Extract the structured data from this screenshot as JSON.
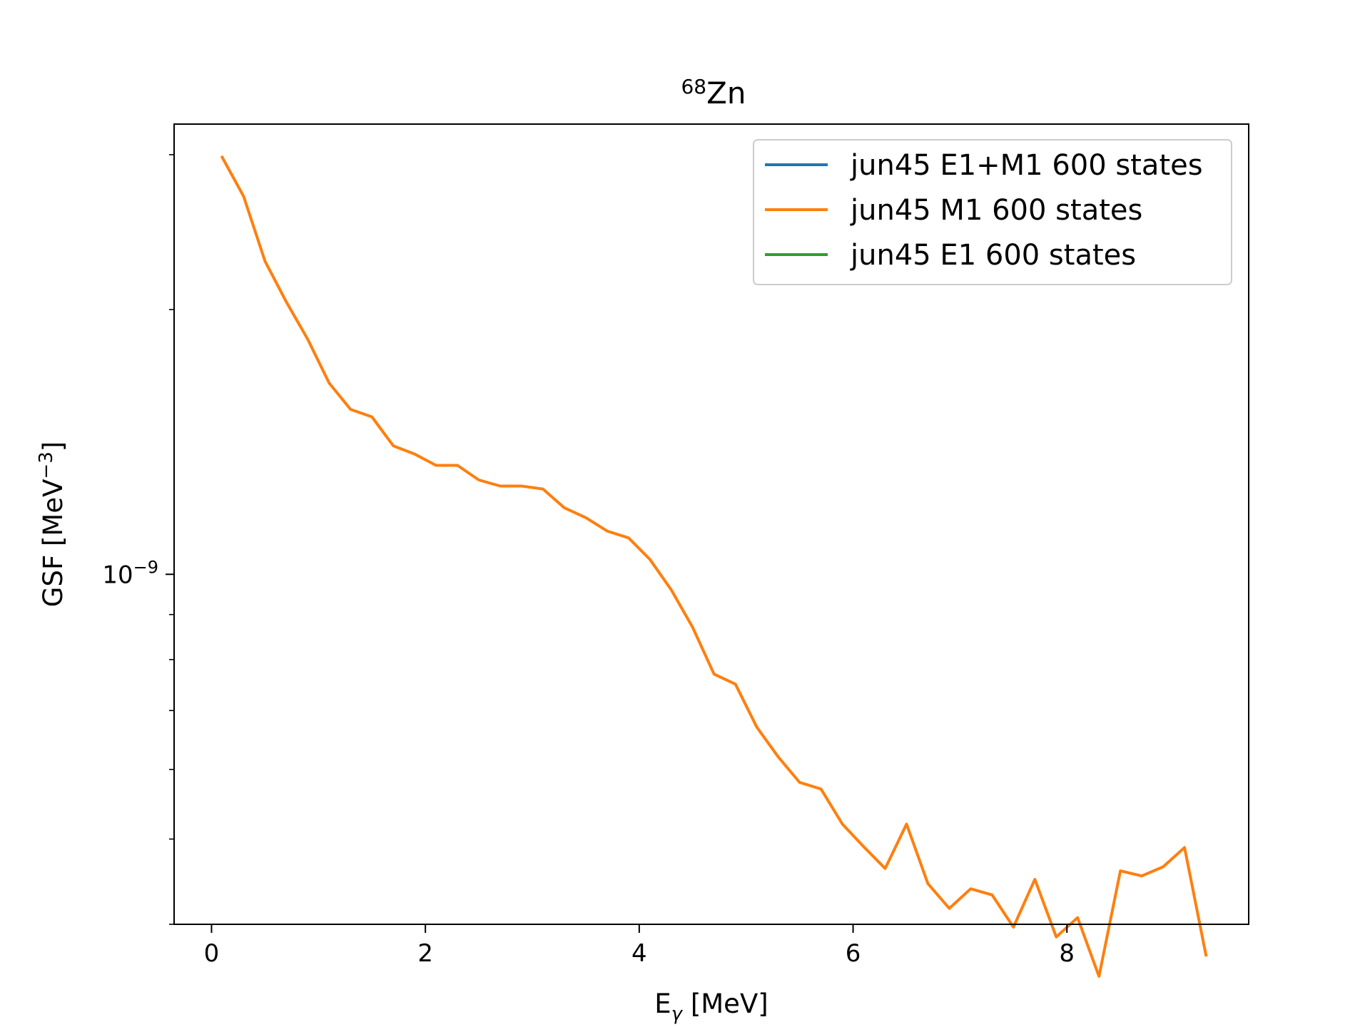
{
  "chart_data": {
    "type": "line",
    "title": {
      "sup": "68",
      "base": "Zn"
    },
    "xlabel": {
      "base": "E",
      "sub": "γ",
      "rest": " [MeV]"
    },
    "ylabel": {
      "base": "GSF [MeV",
      "sup": "−3",
      "rest": "]"
    },
    "xlim": [
      -0.35,
      9.7
    ],
    "ylim": [
      4e-10,
      3.25e-09
    ],
    "yscale": "log",
    "xticks": [
      0,
      2,
      4,
      6,
      8
    ],
    "xtick_labels": [
      "0",
      "2",
      "4",
      "6",
      "8"
    ],
    "yticks_major": [
      1e-09
    ],
    "ytick_major_labels": [
      {
        "base": "10",
        "sup": "−9"
      }
    ],
    "yticks_minor": [
      4e-10,
      5e-10,
      6e-10,
      7e-10,
      8e-10,
      9e-10,
      2e-09,
      3e-09
    ],
    "grid": false,
    "legend_position": "upper right",
    "series": [
      {
        "name": "jun45 E1+M1 600 states",
        "color": "#1f77b4",
        "x": [],
        "y": []
      },
      {
        "name": "jun45 M1 600 states",
        "color": "#ff7f0e",
        "x": [
          0.1,
          0.3,
          0.5,
          0.7,
          0.9,
          1.1,
          1.3,
          1.5,
          1.7,
          1.9,
          2.1,
          2.3,
          2.5,
          2.7,
          2.9,
          3.1,
          3.3,
          3.5,
          3.7,
          3.9,
          4.1,
          4.3,
          4.5,
          4.7,
          4.9,
          5.1,
          5.3,
          5.5,
          5.7,
          5.9,
          6.1,
          6.3,
          6.5,
          6.7,
          6.9,
          7.1,
          7.3,
          7.5,
          7.7,
          7.9,
          8.1,
          8.3,
          8.5,
          8.7,
          8.9,
          9.1,
          9.3
        ],
        "y": [
          2.98e-09,
          2.69e-09,
          2.27e-09,
          2.04e-09,
          1.85e-09,
          1.65e-09,
          1.54e-09,
          1.51e-09,
          1.4e-09,
          1.37e-09,
          1.33e-09,
          1.33e-09,
          1.28e-09,
          1.26e-09,
          1.26e-09,
          1.25e-09,
          1.19e-09,
          1.16e-09,
          1.12e-09,
          1.1e-09,
          1.04e-09,
          9.6e-10,
          8.7e-10,
          7.7e-10,
          7.5e-10,
          6.7e-10,
          6.2e-10,
          5.8e-10,
          5.7e-10,
          5.2e-10,
          4.9e-10,
          4.63e-10,
          5.2e-10,
          4.45e-10,
          4.17e-10,
          4.39e-10,
          4.32e-10,
          3.97e-10,
          4.5e-10,
          3.87e-10,
          4.07e-10,
          3.49e-10,
          4.6e-10,
          4.54e-10,
          4.65e-10,
          4.89e-10,
          3.69e-10
        ]
      },
      {
        "name": "jun45 E1 600 states",
        "color": "#2ca02c",
        "x": [],
        "y": []
      }
    ]
  }
}
